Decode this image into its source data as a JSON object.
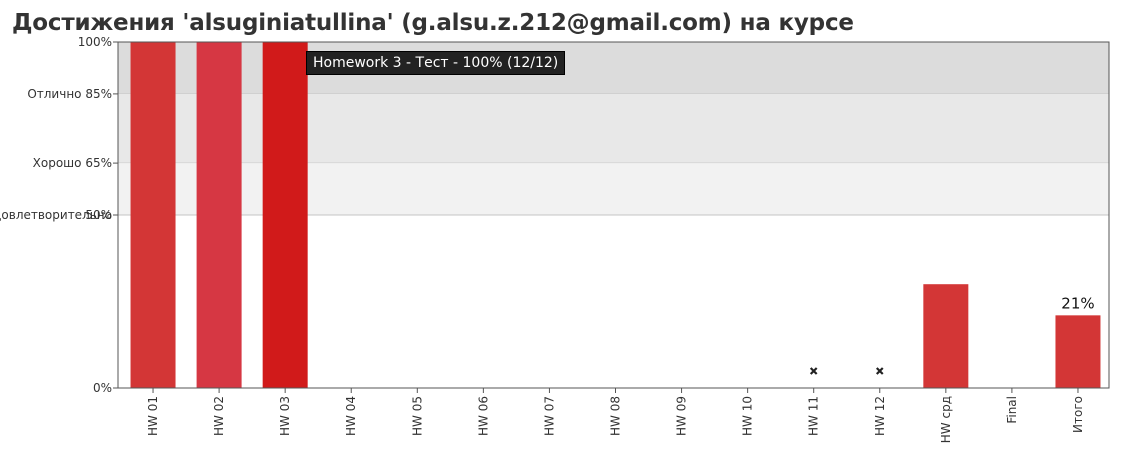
{
  "page": {
    "title": "Достижения 'alsuginiatullina' (g.alsu.z.212@gmail.com) на курсе"
  },
  "tooltip": {
    "text": "Homework 3 - Тест - 100% (12/12)"
  },
  "chart_data": {
    "type": "bar",
    "categories": [
      "HW 01",
      "HW 02",
      "HW 03",
      "HW 04",
      "HW 05",
      "HW 06",
      "HW 07",
      "HW 08",
      "HW 09",
      "HW 10",
      "HW 11",
      "HW 12",
      "HW срд",
      "Final",
      "Итого"
    ],
    "values": [
      100,
      100,
      100,
      null,
      null,
      null,
      null,
      null,
      null,
      null,
      null,
      null,
      30,
      null,
      21
    ],
    "missing_markers": [
      "HW 11",
      "HW 12"
    ],
    "data_labels": [
      {
        "category": "Итого",
        "text": "21%"
      }
    ],
    "highlighted": "HW 03",
    "ylim": [
      0,
      100
    ],
    "y_ticks": [
      {
        "value": 0,
        "label": "0%"
      },
      {
        "value": 50,
        "label": "50%"
      },
      {
        "value": 100,
        "label": "100%"
      }
    ],
    "grade_bands": [
      {
        "label": "Отлично 85%",
        "from": 85,
        "to": 100,
        "color": "#dcdcdc"
      },
      {
        "label": "Хорошо 65%",
        "from": 65,
        "to": 85,
        "color": "#e8e8e8"
      },
      {
        "label": "Удовлетворительно",
        "from": 50,
        "to": 65,
        "color": "#f2f2f2"
      }
    ],
    "colors": {
      "bar": "#d33636",
      "bar_alt": "#d63743",
      "bar_highlight": "#d11a1a",
      "marker": "#222222"
    },
    "xlabel": "",
    "ylabel": "",
    "grid": false,
    "legend": "none"
  }
}
